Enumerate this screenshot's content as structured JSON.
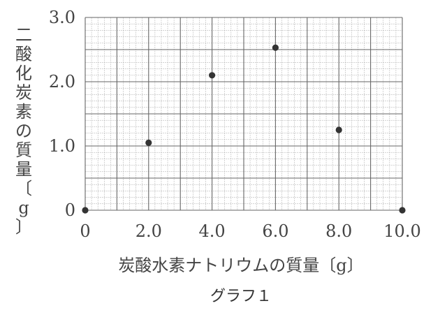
{
  "chart_data": {
    "type": "scatter",
    "xlabel": "炭酸水素ナトリウムの質量〔g〕",
    "ylabel": "二酸化炭素の質量〔g〕",
    "caption": "グラフ１",
    "xlim": [
      0,
      10.0
    ],
    "ylim": [
      0,
      3.0
    ],
    "x_ticks": [
      "0",
      "2.0",
      "4.0",
      "6.0",
      "8.0",
      "10.0"
    ],
    "y_ticks": [
      "0",
      "1.0",
      "2.0",
      "3.0"
    ],
    "points": [
      {
        "x": 0,
        "y": 0
      },
      {
        "x": 2.0,
        "y": 1.05
      },
      {
        "x": 4.0,
        "y": 2.1
      },
      {
        "x": 6.0,
        "y": 2.53
      },
      {
        "x": 8.0,
        "y": 1.25
      },
      {
        "x": 10.0,
        "y": 0
      }
    ],
    "grid": true,
    "colors": {
      "major_grid": "#666666",
      "minor_grid": "#aaaaaa",
      "point": "#333333"
    }
  }
}
